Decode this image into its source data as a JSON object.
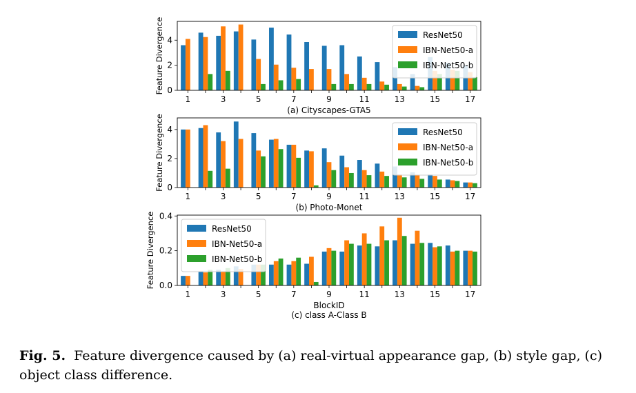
{
  "caption": {
    "label": "Fig. 5.",
    "text": "Feature divergence caused by (a) real-virtual appearance gap, (b) style gap, (c) object class difference."
  },
  "colors": {
    "ResNet50": "#1f77b4",
    "IBN-Net50-a": "#ff7f0e",
    "IBN-Net50-b": "#2ca02c"
  },
  "chart_data": [
    {
      "type": "bar",
      "subtitle": "(a) Cityscapes-GTA5",
      "xlabel": "",
      "ylabel": "Feature Divergence",
      "categories": [
        1,
        2,
        3,
        4,
        5,
        6,
        7,
        8,
        9,
        10,
        11,
        12,
        13,
        14,
        15,
        16,
        17
      ],
      "xticks": [
        "1",
        "3",
        "5",
        "7",
        "9",
        "11",
        "13",
        "15",
        "17"
      ],
      "yticks": [
        "0",
        "2",
        "4"
      ],
      "ylim": [
        0,
        5.5
      ],
      "legend_position": "top-right",
      "series": [
        {
          "name": "ResNet50",
          "values": [
            3.6,
            4.6,
            4.35,
            4.7,
            4.05,
            5.0,
            4.45,
            3.85,
            3.55,
            3.6,
            2.7,
            2.25,
            1.85,
            1.3,
            2.65,
            2.2,
            2.0
          ]
        },
        {
          "name": "IBN-Net50-a",
          "values": [
            4.1,
            4.25,
            5.1,
            5.25,
            2.5,
            2.05,
            1.8,
            1.7,
            1.7,
            1.3,
            1.0,
            0.7,
            0.5,
            0.35,
            1.55,
            1.65,
            1.45
          ]
        },
        {
          "name": "IBN-Net50-b",
          "values": [
            0.0,
            1.3,
            1.55,
            0.0,
            0.5,
            0.8,
            0.9,
            0.0,
            0.5,
            0.5,
            0.5,
            0.45,
            0.3,
            0.25,
            1.3,
            1.55,
            1.05
          ]
        }
      ]
    },
    {
      "type": "bar",
      "subtitle": "(b) Photo-Monet",
      "xlabel": "",
      "ylabel": "Feature Divergence",
      "categories": [
        1,
        2,
        3,
        4,
        5,
        6,
        7,
        8,
        9,
        10,
        11,
        12,
        13,
        14,
        15,
        16,
        17
      ],
      "xticks": [
        "1",
        "3",
        "5",
        "7",
        "9",
        "11",
        "13",
        "15",
        "17"
      ],
      "yticks": [
        "0",
        "2",
        "4"
      ],
      "ylim": [
        0,
        4.8
      ],
      "legend_position": "top-right",
      "series": [
        {
          "name": "ResNet50",
          "values": [
            4.0,
            4.1,
            3.8,
            4.55,
            3.75,
            3.3,
            2.95,
            2.55,
            2.7,
            2.2,
            1.9,
            1.65,
            1.45,
            1.05,
            0.9,
            0.55,
            0.35
          ]
        },
        {
          "name": "IBN-Net50-a",
          "values": [
            4.0,
            4.3,
            3.2,
            3.35,
            2.55,
            3.35,
            2.95,
            2.5,
            1.75,
            1.4,
            1.2,
            1.1,
            0.9,
            0.85,
            0.8,
            0.5,
            0.35
          ]
        },
        {
          "name": "IBN-Net50-b",
          "values": [
            0.0,
            1.15,
            1.3,
            0.0,
            2.15,
            2.65,
            2.05,
            0.15,
            1.2,
            1.0,
            0.85,
            0.8,
            0.7,
            0.6,
            0.55,
            0.45,
            0.3
          ]
        }
      ]
    },
    {
      "type": "bar",
      "subtitle": "(c) class A-Class B",
      "xlabel": "BlockID",
      "ylabel": "Feature Divergence",
      "categories": [
        1,
        2,
        3,
        4,
        5,
        6,
        7,
        8,
        9,
        10,
        11,
        12,
        13,
        14,
        15,
        16,
        17
      ],
      "xticks": [
        "1",
        "3",
        "5",
        "7",
        "9",
        "11",
        "13",
        "15",
        "17"
      ],
      "yticks": [
        "0.0",
        "0.2",
        "0.4"
      ],
      "ylim": [
        0,
        0.405
      ],
      "legend_position": "top-left",
      "series": [
        {
          "name": "ResNet50",
          "values": [
            0.055,
            0.08,
            0.09,
            0.11,
            0.12,
            0.12,
            0.12,
            0.125,
            0.195,
            0.195,
            0.23,
            0.225,
            0.26,
            0.24,
            0.245,
            0.23,
            0.2
          ]
        },
        {
          "name": "IBN-Net50-a",
          "values": [
            0.055,
            0.075,
            0.08,
            0.095,
            0.12,
            0.14,
            0.14,
            0.165,
            0.215,
            0.26,
            0.3,
            0.34,
            0.39,
            0.315,
            0.22,
            0.195,
            0.2
          ]
        },
        {
          "name": "IBN-Net50-b",
          "values": [
            0.0,
            0.09,
            0.1,
            0.0,
            0.12,
            0.155,
            0.16,
            0.02,
            0.2,
            0.24,
            0.24,
            0.26,
            0.285,
            0.245,
            0.225,
            0.2,
            0.195
          ]
        }
      ]
    }
  ]
}
